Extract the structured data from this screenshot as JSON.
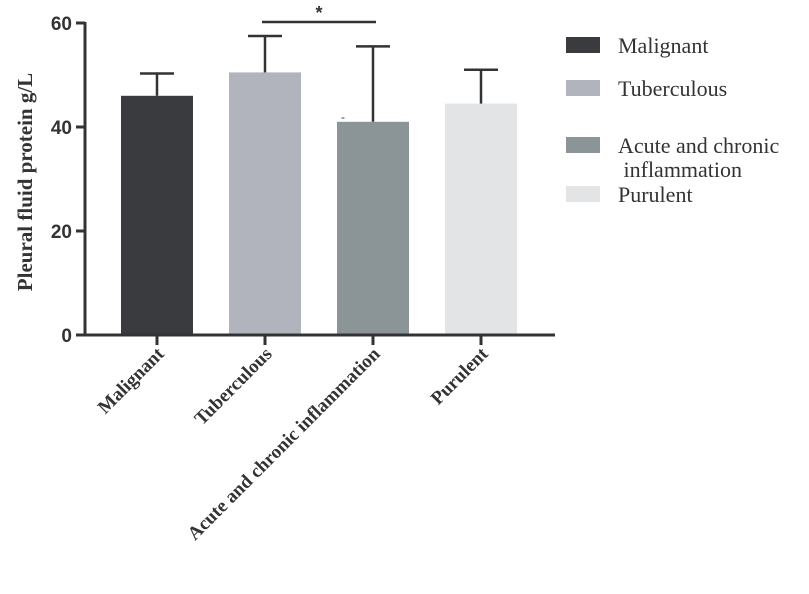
{
  "chart_data": {
    "type": "bar",
    "title": "",
    "xlabel": "",
    "ylabel": "Pleural fluid protein g/L",
    "ylim": [
      0,
      60
    ],
    "yticks": [
      "0",
      "20",
      "40",
      "60"
    ],
    "categories": [
      "Malignant",
      "Tuberculous",
      "Acute and chronic inflammation",
      "Purulent"
    ],
    "values": [
      46,
      50.5,
      41,
      44.5
    ],
    "error_upper": [
      50.3,
      57.5,
      55.5,
      51
    ],
    "colors": [
      "#3a3b3e",
      "#b1b4bd",
      "#8b9496",
      "#e3e4e6"
    ],
    "legend": {
      "placement": "right",
      "entries": [
        {
          "label_lines": [
            "Malignant"
          ]
        },
        {
          "label_lines": [
            "Tuberculous"
          ]
        },
        {
          "label_lines": [
            "Acute and chronic",
            " inflammation"
          ]
        },
        {
          "label_lines": [
            "Purulent"
          ]
        }
      ]
    },
    "significance": [
      {
        "from": 1,
        "to": 2,
        "label": "*"
      }
    ],
    "annotations": [
      {
        "category": 2,
        "text": "-"
      }
    ]
  }
}
